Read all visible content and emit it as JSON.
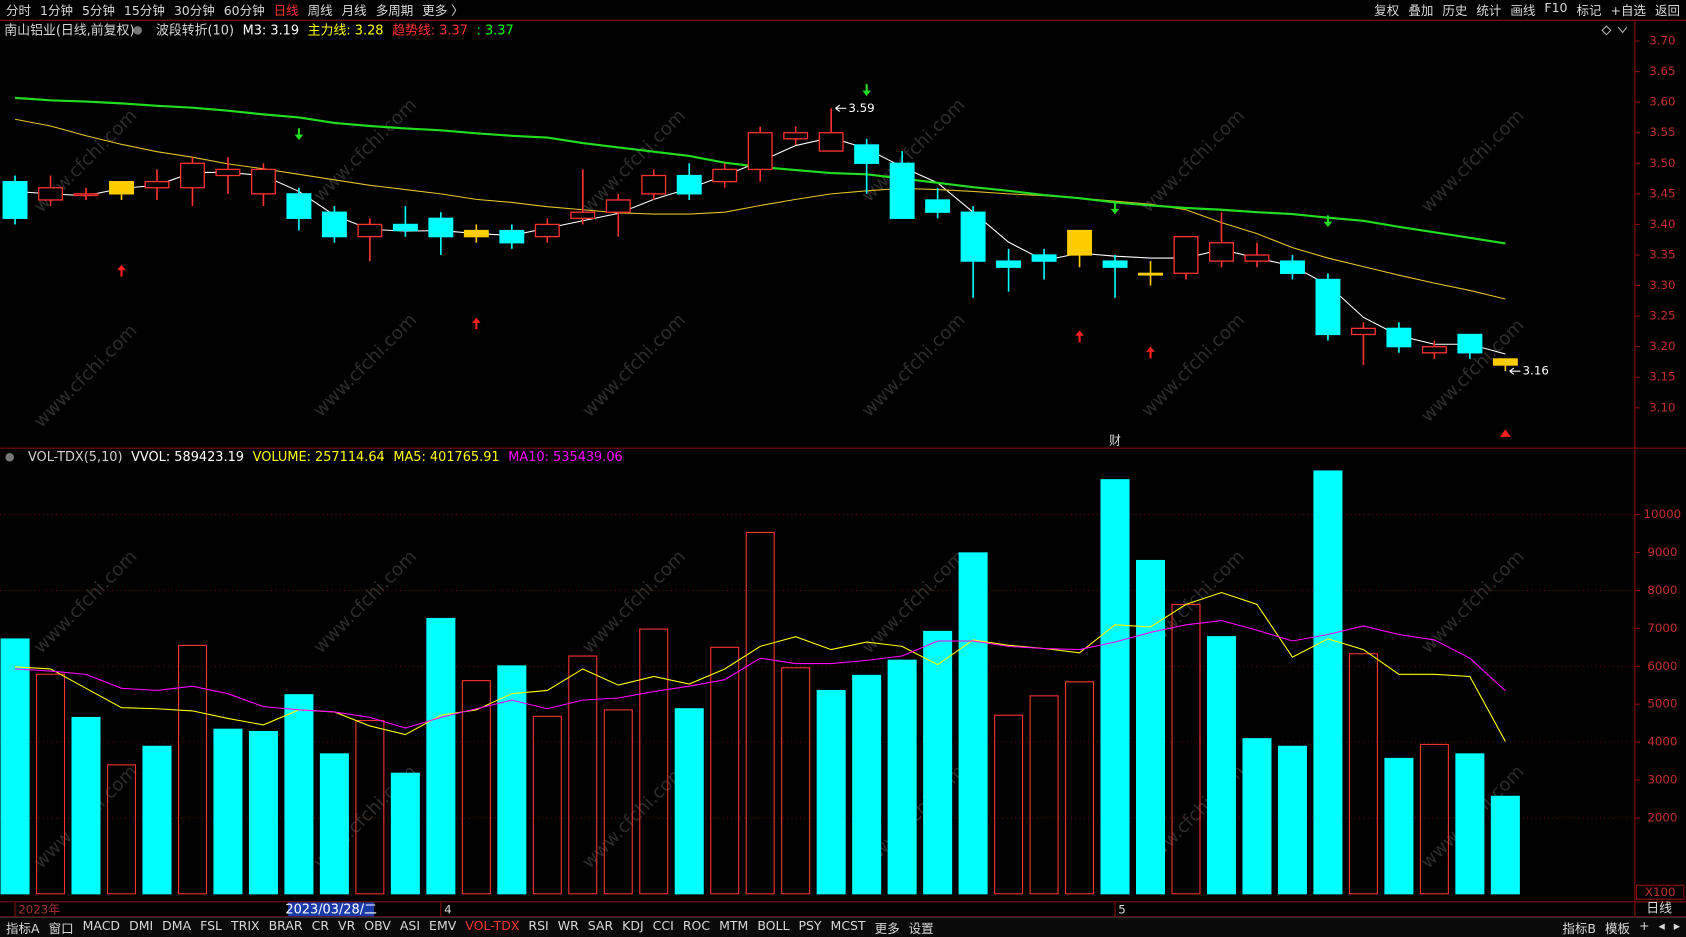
{
  "toolbar": {
    "left": [
      "分时",
      "1分钟",
      "5分钟",
      "15分钟",
      "30分钟",
      "60分钟",
      "日线",
      "周线",
      "月线",
      "多周期",
      "更多 〉"
    ],
    "selected": 6,
    "right": [
      "复权",
      "叠加",
      "历史",
      "统计",
      "画线",
      "F10",
      "标记",
      "+自选",
      "返回"
    ]
  },
  "bottom_tabs": {
    "left": [
      "指标A",
      "窗口",
      "MACD",
      "DMI",
      "DMA",
      "FSL",
      "TRIX",
      "BRAR",
      "CR",
      "VR",
      "OBV",
      "ASI",
      "EMV",
      "VOL-TDX",
      "RSI",
      "WR",
      "SAR",
      "KDJ",
      "CCI",
      "ROC",
      "MTM",
      "BOLL",
      "PSY",
      "MCST",
      "更多",
      "设置"
    ],
    "selected": 13,
    "right": [
      "指标B",
      "模板",
      "+",
      "◂",
      "▸"
    ]
  },
  "watermark": "www.cfchi.com",
  "cursor_date": "2023/03/28/二",
  "period_label": "日线",
  "chart_data": [
    {
      "type": "candlestick",
      "title": "南山铝业(日线,前复权)",
      "indicator": "波段转折(10)",
      "header": [
        {
          "text": "M3: 3.19",
          "color": "#ffffff"
        },
        {
          "text": "主力线: 3.28",
          "color": "#ffff00"
        },
        {
          "text": "趋势线: 3.37",
          "color": "#ff3232"
        },
        {
          "text": ": 3.37",
          "color": "#00ff00"
        }
      ],
      "open": [
        3.47,
        3.44,
        3.45,
        3.45,
        3.46,
        3.46,
        3.48,
        3.45,
        3.45,
        3.42,
        3.38,
        3.4,
        3.41,
        3.38,
        3.39,
        3.38,
        3.41,
        3.42,
        3.45,
        3.48,
        3.47,
        3.49,
        3.54,
        3.52,
        3.53,
        3.5,
        3.44,
        3.42,
        3.34,
        3.35,
        3.35,
        3.34,
        3.32,
        3.32,
        3.34,
        3.34,
        3.34,
        3.31,
        3.22,
        3.23,
        3.19,
        3.22,
        3.18
      ],
      "high": [
        3.48,
        3.48,
        3.46,
        3.47,
        3.49,
        3.51,
        3.51,
        3.5,
        3.46,
        3.43,
        3.41,
        3.43,
        3.42,
        3.4,
        3.4,
        3.41,
        3.49,
        3.45,
        3.49,
        3.5,
        3.5,
        3.56,
        3.56,
        3.59,
        3.54,
        3.52,
        3.46,
        3.43,
        3.36,
        3.36,
        3.39,
        3.35,
        3.34,
        3.38,
        3.42,
        3.37,
        3.35,
        3.32,
        3.24,
        3.24,
        3.21,
        3.22,
        3.18
      ],
      "low": [
        3.4,
        3.43,
        3.44,
        3.44,
        3.44,
        3.43,
        3.45,
        3.43,
        3.39,
        3.37,
        3.34,
        3.38,
        3.35,
        3.37,
        3.36,
        3.37,
        3.4,
        3.38,
        3.44,
        3.44,
        3.46,
        3.47,
        3.53,
        3.52,
        3.45,
        3.41,
        3.41,
        3.28,
        3.29,
        3.31,
        3.33,
        3.28,
        3.3,
        3.31,
        3.33,
        3.33,
        3.31,
        3.21,
        3.17,
        3.19,
        3.18,
        3.18,
        3.16
      ],
      "close": [
        3.41,
        3.46,
        3.45,
        3.47,
        3.47,
        3.5,
        3.49,
        3.49,
        3.41,
        3.38,
        3.4,
        3.39,
        3.38,
        3.39,
        3.37,
        3.4,
        3.42,
        3.44,
        3.48,
        3.45,
        3.49,
        3.55,
        3.55,
        3.55,
        3.5,
        3.41,
        3.42,
        3.34,
        3.33,
        3.34,
        3.39,
        3.33,
        3.32,
        3.38,
        3.37,
        3.35,
        3.32,
        3.22,
        3.23,
        3.2,
        3.2,
        3.19,
        3.17
      ],
      "up_color": "#ff3232",
      "down_color": "#00ffff",
      "highlight_color": "#ffcc00",
      "highlighted": [
        3,
        13,
        30,
        32,
        42
      ],
      "lines": [
        {
          "color": "#ffffff",
          "values": [
            3.454,
            3.45,
            3.447,
            3.459,
            3.464,
            3.485,
            3.485,
            3.48,
            3.454,
            3.415,
            3.392,
            3.389,
            3.39,
            3.385,
            3.382,
            3.394,
            3.406,
            3.418,
            3.441,
            3.459,
            3.48,
            3.503,
            3.529,
            3.542,
            3.524,
            3.494,
            3.468,
            3.42,
            3.371,
            3.341,
            3.353,
            3.348,
            3.345,
            3.345,
            3.359,
            3.345,
            3.332,
            3.301,
            3.248,
            3.218,
            3.204,
            3.204,
            3.188
          ]
        },
        {
          "color": "#e6c229",
          "values": [
            3.572,
            3.561,
            3.545,
            3.531,
            3.519,
            3.51,
            3.499,
            3.491,
            3.482,
            3.473,
            3.464,
            3.457,
            3.45,
            3.441,
            3.436,
            3.429,
            3.424,
            3.419,
            3.417,
            3.417,
            3.42,
            3.431,
            3.441,
            3.45,
            3.455,
            3.459,
            3.457,
            3.454,
            3.45,
            3.447,
            3.443,
            3.438,
            3.433,
            3.424,
            3.403,
            3.385,
            3.362,
            3.345,
            3.331,
            3.317,
            3.304,
            3.292,
            3.278
          ]
        },
        {
          "color": "#22dd22",
          "values": [
            3.607,
            3.603,
            3.601,
            3.598,
            3.594,
            3.591,
            3.586,
            3.58,
            3.575,
            3.566,
            3.561,
            3.557,
            3.554,
            3.549,
            3.545,
            3.542,
            3.533,
            3.526,
            3.519,
            3.512,
            3.501,
            3.494,
            3.489,
            3.484,
            3.482,
            3.475,
            3.468,
            3.461,
            3.455,
            3.448,
            3.443,
            3.436,
            3.431,
            3.427,
            3.424,
            3.42,
            3.417,
            3.411,
            3.406,
            3.396,
            3.387,
            3.378,
            3.369
          ]
        }
      ],
      "annotations": [
        3.59,
        3.16
      ],
      "marker": "财",
      "ylim": [
        3.035,
        3.735
      ],
      "yticks": [
        {
          "value": 3.1,
          "label": "3.10"
        },
        3.15,
        {
          "value": 3.2,
          "label": "3.20"
        },
        3.25,
        {
          "value": 3.3,
          "label": "3.30"
        },
        3.35,
        {
          "value": 3.4,
          "label": "3.40"
        },
        3.45,
        {
          "value": 3.5,
          "label": "3.50"
        },
        3.55,
        {
          "value": 3.6,
          "label": "3.60"
        },
        3.65,
        {
          "value": 3.7,
          "label": "3.70"
        }
      ]
    },
    {
      "type": "bar",
      "header": [
        {
          "text": "VOL-TDX(5,10)",
          "color": "#d0d0d0"
        },
        {
          "text": "VVOL: 589423.19",
          "color": "#ffffff"
        },
        {
          "text": "VOLUME: 257114.64",
          "color": "#ffff00"
        },
        {
          "text": "MA5: 401765.91",
          "color": "#ffff00"
        },
        {
          "text": "MA10: 535439.06",
          "color": "#ff00ff"
        }
      ],
      "categories": [
        "2023年",
        null,
        null,
        null,
        null,
        null,
        null,
        null,
        null,
        null,
        null,
        null,
        "4",
        null,
        null,
        null,
        null,
        null,
        null,
        null,
        null,
        null,
        null,
        null,
        null,
        null,
        null,
        null,
        null,
        null,
        null,
        "5",
        null,
        null,
        null,
        null,
        null,
        null,
        null,
        null,
        null,
        null,
        null
      ],
      "series": [
        {
          "type": "bar",
          "values": [
            6720,
            5790,
            4650,
            3400,
            3890,
            6550,
            4340,
            4280,
            5250,
            3690,
            4570,
            3180,
            7260,
            5620,
            6010,
            4680,
            6270,
            4850,
            6980,
            4880,
            6500,
            9530,
            5960,
            5360,
            5760,
            6160,
            6920,
            8990,
            4710,
            5220,
            5590,
            10920,
            8790,
            7630,
            6780,
            4090,
            3890,
            11150,
            6330,
            3570,
            3940,
            3690,
            2571.15
          ],
          "colors": [
            "#00ffff",
            "#ff3232",
            "#00ffff",
            "#ff3232",
            "#00ffff",
            "#ff3232",
            "#00ffff",
            "#00ffff",
            "#00ffff",
            "#00ffff",
            "#ff3232",
            "#00ffff",
            "#00ffff",
            "#ff3232",
            "#00ffff",
            "#ff3232",
            "#ff3232",
            "#ff3232",
            "#ff3232",
            "#00ffff",
            "#ff3232",
            "#ff3232",
            "#ff3232",
            "#00ffff",
            "#00ffff",
            "#00ffff",
            "#00ffff",
            "#00ffff",
            "#ff3232",
            "#ff3232",
            "#ff3232",
            "#00ffff",
            "#00ffff",
            "#ff3232",
            "#00ffff",
            "#00ffff",
            "#00ffff",
            "#00ffff",
            "#ff3232",
            "#00ffff",
            "#ff3232",
            "#00ffff",
            "#00ffff"
          ]
        },
        {
          "type": "line",
          "color": "#ffff00",
          "values": [
            5986,
            5929,
            5419,
            4908,
            4880,
            4823,
            4624,
            4454,
            4851,
            4795,
            4426,
            4199,
            4709,
            4851,
            5277,
            5362,
            5929,
            5504,
            5731,
            5532,
            5929,
            6525,
            6780,
            6440,
            6639,
            6525,
            6043,
            6695,
            6553,
            6468,
            6355,
            7093,
            7036,
            7632,
            7944,
            7632,
            6241,
            6724,
            6440,
            5787,
            5787,
            5731,
            4017.66
          ]
        },
        {
          "type": "line",
          "color": "#ff00ff",
          "values": [
            5929,
            5873,
            5787,
            5419,
            5362,
            5475,
            5277,
            4936,
            4851,
            4795,
            4653,
            4369,
            4653,
            4880,
            5107,
            4880,
            5107,
            5163,
            5333,
            5475,
            5646,
            6213,
            6071,
            6071,
            6156,
            6270,
            6667,
            6667,
            6525,
            6468,
            6440,
            6639,
            6894,
            7093,
            7206,
            6951,
            6667,
            6837,
            7064,
            6837,
            6695,
            6213,
            5354.39
          ]
        }
      ],
      "hollow_color": "#ff3232",
      "ylim": [
        0,
        11200
      ],
      "yticks": [
        2000,
        3000,
        4000,
        5000,
        6000,
        7000,
        8000,
        9000,
        10000
      ],
      "grid_step": 2000,
      "unit_label": "X100"
    }
  ]
}
